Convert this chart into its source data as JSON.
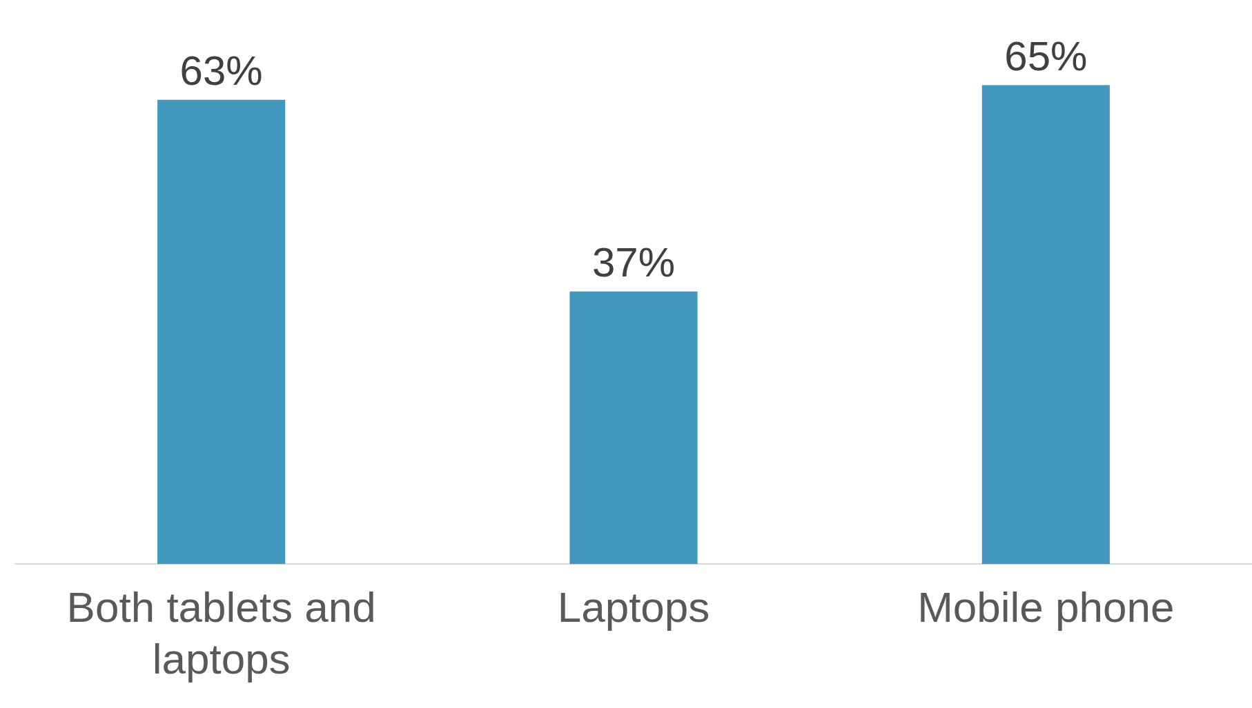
{
  "chart_data": {
    "type": "bar",
    "categories": [
      "Both tablets and laptops",
      "Laptops",
      "Mobile phone"
    ],
    "values": [
      63,
      37,
      65
    ],
    "color": "#4398c0",
    "value_labels": [
      "63%",
      "37%",
      "65%"
    ],
    "grid": false,
    "legend": false
  }
}
